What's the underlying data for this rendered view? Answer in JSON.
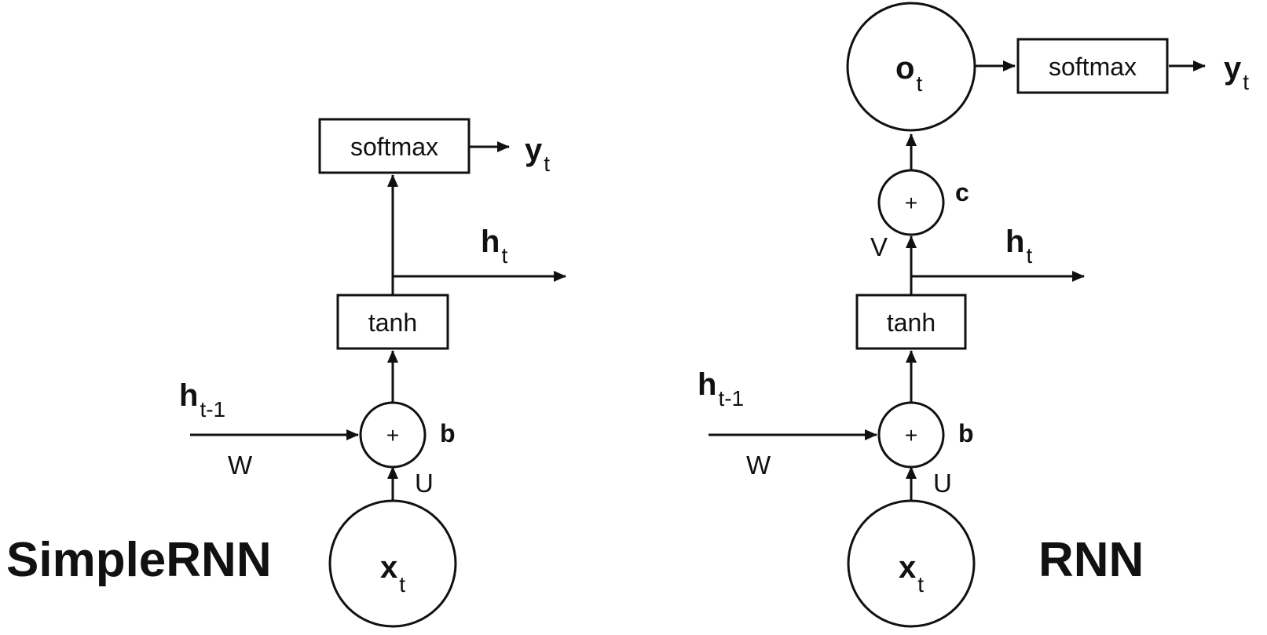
{
  "colors": {
    "ink": "#111111",
    "background": "#ffffff"
  },
  "left": {
    "title": "SimpleRNN",
    "input": {
      "main": "x",
      "sub": "t"
    },
    "hidden_prev": {
      "main": "h",
      "sub": "t-1"
    },
    "hidden_out": {
      "main": "h",
      "sub": "t"
    },
    "output": {
      "main": "y",
      "sub": "t"
    },
    "weight_w": "W",
    "weight_u": "U",
    "bias": "b",
    "sum_symbol": "+",
    "activation": "tanh",
    "softmax": "softmax"
  },
  "right": {
    "title": "RNN",
    "input": {
      "main": "x",
      "sub": "t"
    },
    "hidden_prev": {
      "main": "h",
      "sub": "t-1"
    },
    "hidden_out": {
      "main": "h",
      "sub": "t"
    },
    "output_node": {
      "main": "o",
      "sub": "t"
    },
    "output": {
      "main": "y",
      "sub": "t"
    },
    "weight_w": "W",
    "weight_u": "U",
    "weight_v": "V",
    "bias": "b",
    "bias_c": "c",
    "sum_symbol": "+",
    "activation": "tanh",
    "softmax": "softmax"
  }
}
